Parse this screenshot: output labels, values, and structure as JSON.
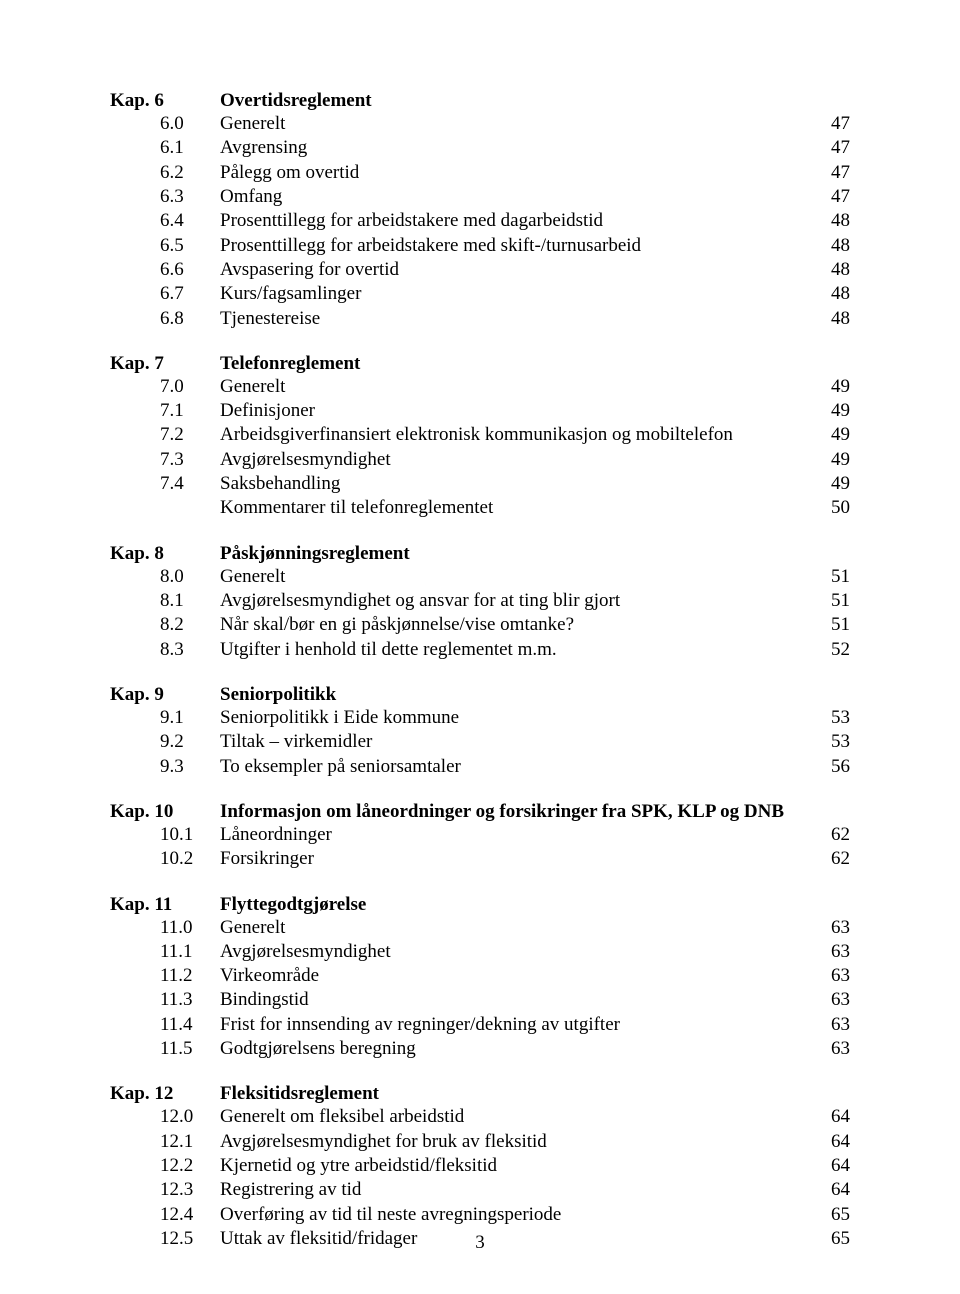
{
  "page_number": "3",
  "chapters": [
    {
      "num": "Kap. 6",
      "title": "Overtidsreglement",
      "entries": [
        {
          "num": "6.0",
          "title": "Generelt",
          "page": "47"
        },
        {
          "num": "6.1",
          "title": "Avgrensing",
          "page": "47"
        },
        {
          "num": "6.2",
          "title": "Pålegg om overtid",
          "page": "47"
        },
        {
          "num": "6.3",
          "title": "Omfang",
          "page": "47"
        },
        {
          "num": "6.4",
          "title": "Prosenttillegg for arbeidstakere med dagarbeidstid",
          "page": "48"
        },
        {
          "num": "6.5",
          "title": "Prosenttillegg for arbeidstakere med skift-/turnusarbeid",
          "page": "48"
        },
        {
          "num": "6.6",
          "title": "Avspasering for overtid",
          "page": "48"
        },
        {
          "num": "6.7",
          "title": "Kurs/fagsamlinger",
          "page": "48"
        },
        {
          "num": "6.8",
          "title": "Tjenestereise",
          "page": "48"
        }
      ]
    },
    {
      "num": "Kap. 7",
      "title": "Telefonreglement",
      "entries": [
        {
          "num": "7.0",
          "title": "Generelt",
          "page": "49"
        },
        {
          "num": "7.1",
          "title": "Definisjoner",
          "page": "49"
        },
        {
          "num": "7.2",
          "title": "Arbeidsgiverfinansiert elektronisk kommunikasjon og mobiltelefon",
          "page": "49"
        },
        {
          "num": "7.3",
          "title": "Avgjørelsesmyndighet",
          "page": "49"
        },
        {
          "num": "7.4",
          "title": "Saksbehandling",
          "page": "49"
        },
        {
          "num": "",
          "title": "Kommentarer til telefonreglementet",
          "page": "50"
        }
      ]
    },
    {
      "num": "Kap. 8",
      "title": "Påskjønningsreglement",
      "entries": [
        {
          "num": "8.0",
          "title": "Generelt",
          "page": "51"
        },
        {
          "num": "8.1",
          "title": "Avgjørelsesmyndighet og ansvar for at ting blir gjort",
          "page": "51"
        },
        {
          "num": "8.2",
          "title": "Når skal/bør en gi påskjønnelse/vise omtanke?",
          "page": "51"
        },
        {
          "num": "8.3",
          "title": "Utgifter i henhold til dette reglementet m.m.",
          "page": "52"
        }
      ]
    },
    {
      "num": "Kap. 9",
      "title": "Seniorpolitikk",
      "entries": [
        {
          "num": "9.1",
          "title": "Seniorpolitikk i Eide kommune",
          "page": "53"
        },
        {
          "num": "9.2",
          "title": "Tiltak – virkemidler",
          "page": "53"
        },
        {
          "num": "9.3",
          "title": "To eksempler på seniorsamtaler",
          "page": "56"
        }
      ]
    },
    {
      "num": "Kap. 10",
      "title": "Informasjon om låneordninger og forsikringer fra SPK, KLP og DNB",
      "entries": [
        {
          "num": "10.1",
          "title": "Låneordninger",
          "page": "62"
        },
        {
          "num": "10.2",
          "title": "Forsikringer",
          "page": "62"
        }
      ]
    },
    {
      "num": "Kap. 11",
      "title": "Flyttegodtgjørelse",
      "entries": [
        {
          "num": "11.0",
          "title": "Generelt",
          "page": "63"
        },
        {
          "num": "11.1",
          "title": "Avgjørelsesmyndighet",
          "page": "63"
        },
        {
          "num": "11.2",
          "title": "Virkeområde",
          "page": "63"
        },
        {
          "num": "11.3",
          "title": "Bindingstid",
          "page": "63"
        },
        {
          "num": "11.4",
          "title": "Frist for innsending av regninger/dekning av utgifter",
          "page": "63"
        },
        {
          "num": "11.5",
          "title": "Godtgjørelsens beregning",
          "page": "63"
        }
      ]
    },
    {
      "num": "Kap. 12",
      "title": "Fleksitidsreglement",
      "entries": [
        {
          "num": "12.0",
          "title": "Generelt om fleksibel arbeidstid",
          "page": "64"
        },
        {
          "num": "12.1",
          "title": "Avgjørelsesmyndighet for bruk av fleksitid",
          "page": "64"
        },
        {
          "num": "12.2",
          "title": "Kjernetid og ytre arbeidstid/fleksitid",
          "page": "64"
        },
        {
          "num": "12.3",
          "title": "Registrering av tid",
          "page": "64"
        },
        {
          "num": "12.4",
          "title": "Overføring av tid til neste avregningsperiode",
          "page": "65"
        },
        {
          "num": "12.5",
          "title": "Uttak av fleksitid/fridager",
          "page": "65"
        }
      ]
    }
  ]
}
